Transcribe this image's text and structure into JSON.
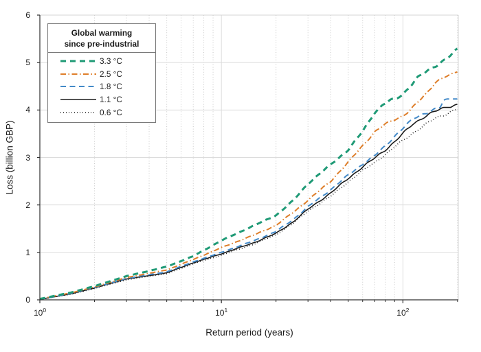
{
  "chart_data": {
    "type": "line",
    "title": "",
    "xlabel": "Return period (years)",
    "ylabel": "Loss (billion GBP)",
    "x_scale": "log",
    "xlim": [
      1,
      202
    ],
    "ylim": [
      0,
      6
    ],
    "grid": "major solid light gray, minor dotted vertical on log decades",
    "x_ticks": [
      {
        "value": 1,
        "label": "10^0"
      },
      {
        "value": 10,
        "label": "10^1"
      },
      {
        "value": 100,
        "label": "10^2"
      }
    ],
    "x_minor_ticks": [
      2,
      3,
      4,
      5,
      6,
      7,
      8,
      9,
      20,
      30,
      40,
      50,
      60,
      70,
      80,
      90,
      200
    ],
    "y_ticks": [
      {
        "value": 0,
        "label": "0"
      },
      {
        "value": 1,
        "label": "1"
      },
      {
        "value": 2,
        "label": "2"
      },
      {
        "value": 3,
        "label": "3"
      },
      {
        "value": 4,
        "label": "4"
      },
      {
        "value": 5,
        "label": "5"
      },
      {
        "value": 6,
        "label": "6"
      }
    ],
    "legend": {
      "title_line1": "Global warming",
      "title_line2": "since pre-industrial",
      "position": "upper left"
    },
    "colors": {
      "teal": "#1f9a76",
      "orange": "#de7d28",
      "blue": "#4289c8",
      "black": "#1a1a1a",
      "grid_major": "#dcdcdc",
      "grid_minor": "#c8c8c8",
      "frame_light": "#d4d4d4",
      "axis_dark": "#303030"
    },
    "series": [
      {
        "name": "3.3 °C",
        "color": "#1f9a76",
        "style": "dashed-thick",
        "points": [
          [
            1,
            0.02
          ],
          [
            1.5,
            0.16
          ],
          [
            2,
            0.29
          ],
          [
            3,
            0.5
          ],
          [
            4,
            0.61
          ],
          [
            5,
            0.7
          ],
          [
            7,
            0.92
          ],
          [
            10,
            1.25
          ],
          [
            13,
            1.45
          ],
          [
            15,
            1.56
          ],
          [
            20,
            1.78
          ],
          [
            25,
            2.1
          ],
          [
            30,
            2.45
          ],
          [
            40,
            2.85
          ],
          [
            50,
            3.16
          ],
          [
            60,
            3.55
          ],
          [
            70,
            3.95
          ],
          [
            78,
            4.12
          ],
          [
            85,
            4.2
          ],
          [
            92,
            4.24
          ],
          [
            100,
            4.33
          ],
          [
            120,
            4.68
          ],
          [
            150,
            4.92
          ],
          [
            175,
            5.1
          ],
          [
            200,
            5.27
          ]
        ]
      },
      {
        "name": "2.5 °C",
        "color": "#de7d28",
        "style": "dash-dot",
        "points": [
          [
            1,
            0.02
          ],
          [
            1.5,
            0.15
          ],
          [
            2,
            0.27
          ],
          [
            3,
            0.47
          ],
          [
            4,
            0.56
          ],
          [
            5,
            0.63
          ],
          [
            7,
            0.85
          ],
          [
            10,
            1.1
          ],
          [
            15,
            1.36
          ],
          [
            20,
            1.57
          ],
          [
            25,
            1.85
          ],
          [
            30,
            2.1
          ],
          [
            40,
            2.5
          ],
          [
            50,
            2.9
          ],
          [
            60,
            3.25
          ],
          [
            70,
            3.54
          ],
          [
            80,
            3.7
          ],
          [
            90,
            3.8
          ],
          [
            100,
            3.88
          ],
          [
            110,
            4.0
          ],
          [
            120,
            4.15
          ],
          [
            135,
            4.35
          ],
          [
            150,
            4.58
          ],
          [
            170,
            4.7
          ],
          [
            185,
            4.73
          ],
          [
            200,
            4.82
          ]
        ]
      },
      {
        "name": "1.8 °C",
        "color": "#4289c8",
        "style": "dashed",
        "points": [
          [
            1,
            0.01
          ],
          [
            1.5,
            0.14
          ],
          [
            2,
            0.26
          ],
          [
            3,
            0.45
          ],
          [
            4,
            0.53
          ],
          [
            5,
            0.59
          ],
          [
            7,
            0.8
          ],
          [
            10,
            1.0
          ],
          [
            15,
            1.24
          ],
          [
            20,
            1.44
          ],
          [
            25,
            1.7
          ],
          [
            30,
            1.96
          ],
          [
            40,
            2.32
          ],
          [
            50,
            2.63
          ],
          [
            60,
            2.86
          ],
          [
            70,
            3.04
          ],
          [
            80,
            3.24
          ],
          [
            90,
            3.45
          ],
          [
            100,
            3.62
          ],
          [
            115,
            3.82
          ],
          [
            130,
            3.92
          ],
          [
            150,
            4.02
          ],
          [
            160,
            4.05
          ],
          [
            168,
            4.2
          ],
          [
            185,
            4.21
          ],
          [
            200,
            4.23
          ]
        ]
      },
      {
        "name": "1.1 °C",
        "color": "#1a1a1a",
        "style": "solid",
        "points": [
          [
            1,
            0.01
          ],
          [
            1.5,
            0.13
          ],
          [
            2,
            0.25
          ],
          [
            3,
            0.44
          ],
          [
            4,
            0.51
          ],
          [
            5,
            0.57
          ],
          [
            7,
            0.78
          ],
          [
            10,
            0.97
          ],
          [
            15,
            1.2
          ],
          [
            20,
            1.4
          ],
          [
            25,
            1.65
          ],
          [
            30,
            1.91
          ],
          [
            40,
            2.25
          ],
          [
            50,
            2.56
          ],
          [
            60,
            2.8
          ],
          [
            70,
            2.99
          ],
          [
            80,
            3.16
          ],
          [
            90,
            3.33
          ],
          [
            100,
            3.5
          ],
          [
            113,
            3.7
          ],
          [
            130,
            3.85
          ],
          [
            150,
            3.97
          ],
          [
            175,
            4.06
          ],
          [
            200,
            4.12
          ]
        ]
      },
      {
        "name": "0.6 °C",
        "color": "#1a1a1a",
        "style": "dotted",
        "points": [
          [
            1,
            0.01
          ],
          [
            1.5,
            0.12
          ],
          [
            2,
            0.24
          ],
          [
            3,
            0.42
          ],
          [
            4,
            0.5
          ],
          [
            5,
            0.55
          ],
          [
            7,
            0.76
          ],
          [
            10,
            0.94
          ],
          [
            15,
            1.17
          ],
          [
            20,
            1.37
          ],
          [
            25,
            1.62
          ],
          [
            30,
            1.87
          ],
          [
            40,
            2.18
          ],
          [
            50,
            2.49
          ],
          [
            60,
            2.72
          ],
          [
            70,
            2.9
          ],
          [
            80,
            3.06
          ],
          [
            90,
            3.22
          ],
          [
            100,
            3.36
          ],
          [
            120,
            3.58
          ],
          [
            150,
            3.82
          ],
          [
            175,
            3.93
          ],
          [
            200,
            4.03
          ]
        ]
      }
    ]
  }
}
